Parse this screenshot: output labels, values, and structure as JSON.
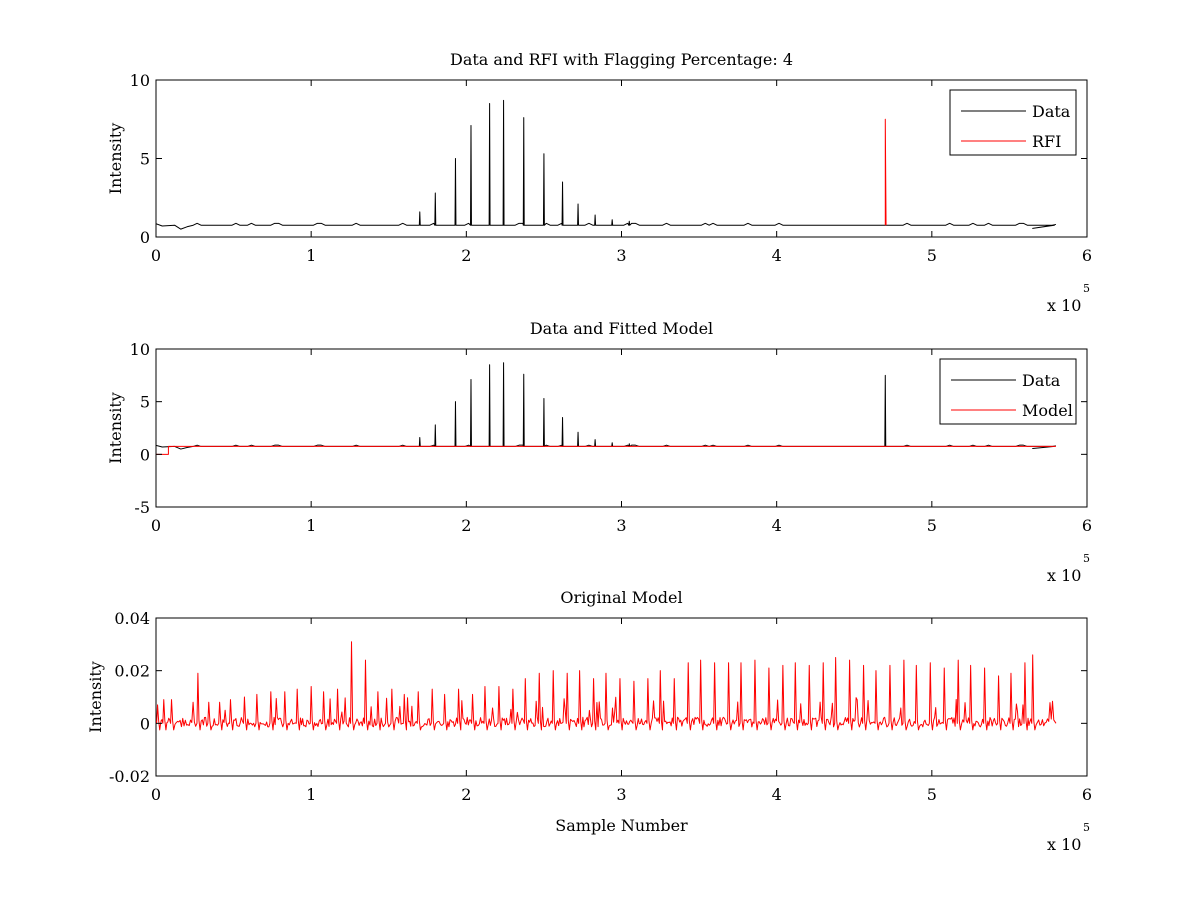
{
  "figure": {
    "background": "#ffffff"
  },
  "chart_data": [
    {
      "type": "line",
      "title": "Data and RFI with Flagging Percentage: 4",
      "xlabel": "",
      "ylabel": "Intensity",
      "xlim": [
        0,
        600000
      ],
      "ylim": [
        0,
        10
      ],
      "xticks": [
        0,
        100000,
        200000,
        300000,
        400000,
        500000,
        600000
      ],
      "xtick_labels": [
        "0",
        "1",
        "2",
        "3",
        "4",
        "5",
        "6"
      ],
      "x_exponent_label": "x 10",
      "x_exponent_power": "5",
      "yticks": [
        0,
        5,
        10
      ],
      "ytick_labels": [
        "0",
        "5",
        "10"
      ],
      "grid": false,
      "legend_position": "top-right",
      "baseline": 0.75,
      "series": [
        {
          "name": "Data",
          "color": "#000000",
          "spikes": [
            {
              "x": 170000,
              "y": 1.6
            },
            {
              "x": 180000,
              "y": 2.8
            },
            {
              "x": 193000,
              "y": 5.0
            },
            {
              "x": 203000,
              "y": 7.1
            },
            {
              "x": 215000,
              "y": 8.5
            },
            {
              "x": 224000,
              "y": 8.7
            },
            {
              "x": 237000,
              "y": 7.6
            },
            {
              "x": 250000,
              "y": 5.3
            },
            {
              "x": 262000,
              "y": 3.5
            },
            {
              "x": 272000,
              "y": 2.1
            },
            {
              "x": 283000,
              "y": 1.4
            },
            {
              "x": 294000,
              "y": 1.1
            },
            {
              "x": 305000,
              "y": 1.0
            }
          ]
        },
        {
          "name": "RFI",
          "color": "#ff0000",
          "spikes": [
            {
              "x": 470000,
              "y": 7.5
            }
          ]
        }
      ]
    },
    {
      "type": "line",
      "title": "Data and Fitted Model",
      "xlabel": "",
      "ylabel": "Intensity",
      "xlim": [
        0,
        600000
      ],
      "ylim": [
        -5,
        10
      ],
      "xticks": [
        0,
        100000,
        200000,
        300000,
        400000,
        500000,
        600000
      ],
      "xtick_labels": [
        "0",
        "1",
        "2",
        "3",
        "4",
        "5",
        "6"
      ],
      "x_exponent_label": "x 10",
      "x_exponent_power": "5",
      "yticks": [
        -5,
        0,
        5,
        10
      ],
      "ytick_labels": [
        "-5",
        "0",
        "5",
        "10"
      ],
      "grid": false,
      "legend_position": "top-right",
      "baseline": 0.75,
      "series": [
        {
          "name": "Data",
          "color": "#000000",
          "spikes": [
            {
              "x": 170000,
              "y": 1.6
            },
            {
              "x": 180000,
              "y": 2.8
            },
            {
              "x": 193000,
              "y": 5.0
            },
            {
              "x": 203000,
              "y": 7.1
            },
            {
              "x": 215000,
              "y": 8.5
            },
            {
              "x": 224000,
              "y": 8.7
            },
            {
              "x": 237000,
              "y": 7.6
            },
            {
              "x": 250000,
              "y": 5.3
            },
            {
              "x": 262000,
              "y": 3.5
            },
            {
              "x": 272000,
              "y": 2.1
            },
            {
              "x": 283000,
              "y": 1.4
            },
            {
              "x": 294000,
              "y": 1.1
            },
            {
              "x": 305000,
              "y": 1.0
            },
            {
              "x": 470000,
              "y": 7.5
            }
          ]
        },
        {
          "name": "Model",
          "color": "#ff0000",
          "value": 0.75,
          "dip": {
            "x_start": 0,
            "x_end": 8000,
            "y": 0.0
          }
        }
      ]
    },
    {
      "type": "line",
      "title": "Original Model",
      "xlabel": "Sample Number",
      "ylabel": "Intensity",
      "xlim": [
        0,
        600000
      ],
      "ylim": [
        -0.02,
        0.04
      ],
      "xticks": [
        0,
        100000,
        200000,
        300000,
        400000,
        500000,
        600000
      ],
      "xtick_labels": [
        "0",
        "1",
        "2",
        "3",
        "4",
        "5",
        "6"
      ],
      "x_exponent_label": "x 10",
      "x_exponent_power": "5",
      "yticks": [
        -0.02,
        0,
        0.02,
        0.04
      ],
      "ytick_labels": [
        "-0.02",
        "0",
        "0.02",
        "0.04"
      ],
      "grid": false,
      "series": [
        {
          "color": "#ff0000",
          "x_end": 580000,
          "peaks": [
            {
              "x": 1000,
              "y": 0.007
            },
            {
              "x": 5000,
              "y": 0.009
            },
            {
              "x": 10000,
              "y": 0.009
            },
            {
              "x": 27000,
              "y": 0.019
            },
            {
              "x": 34000,
              "y": 0.008
            },
            {
              "x": 41000,
              "y": 0.008
            },
            {
              "x": 48000,
              "y": 0.009
            },
            {
              "x": 57000,
              "y": 0.01
            },
            {
              "x": 65000,
              "y": 0.011
            },
            {
              "x": 74000,
              "y": 0.012
            },
            {
              "x": 83000,
              "y": 0.012
            },
            {
              "x": 91000,
              "y": 0.013
            },
            {
              "x": 100000,
              "y": 0.014
            },
            {
              "x": 108000,
              "y": 0.012
            },
            {
              "x": 117000,
              "y": 0.013
            },
            {
              "x": 126000,
              "y": 0.031
            },
            {
              "x": 135000,
              "y": 0.024
            },
            {
              "x": 143000,
              "y": 0.012
            },
            {
              "x": 152000,
              "y": 0.013
            },
            {
              "x": 160000,
              "y": 0.011
            },
            {
              "x": 169000,
              "y": 0.012
            },
            {
              "x": 178000,
              "y": 0.013
            },
            {
              "x": 186000,
              "y": 0.011
            },
            {
              "x": 195000,
              "y": 0.013
            },
            {
              "x": 204000,
              "y": 0.011
            },
            {
              "x": 212000,
              "y": 0.014
            },
            {
              "x": 221000,
              "y": 0.014
            },
            {
              "x": 230000,
              "y": 0.013
            },
            {
              "x": 238000,
              "y": 0.017
            },
            {
              "x": 247000,
              "y": 0.019
            },
            {
              "x": 256000,
              "y": 0.02
            },
            {
              "x": 265000,
              "y": 0.019
            },
            {
              "x": 273000,
              "y": 0.02
            },
            {
              "x": 282000,
              "y": 0.017
            },
            {
              "x": 290000,
              "y": 0.019
            },
            {
              "x": 299000,
              "y": 0.017
            },
            {
              "x": 308000,
              "y": 0.016
            },
            {
              "x": 317000,
              "y": 0.017
            },
            {
              "x": 325000,
              "y": 0.02
            },
            {
              "x": 334000,
              "y": 0.017
            },
            {
              "x": 343000,
              "y": 0.023
            },
            {
              "x": 351000,
              "y": 0.024
            },
            {
              "x": 360000,
              "y": 0.023
            },
            {
              "x": 369000,
              "y": 0.023
            },
            {
              "x": 377000,
              "y": 0.023
            },
            {
              "x": 386000,
              "y": 0.024
            },
            {
              "x": 395000,
              "y": 0.021
            },
            {
              "x": 404000,
              "y": 0.022
            },
            {
              "x": 412000,
              "y": 0.023
            },
            {
              "x": 421000,
              "y": 0.022
            },
            {
              "x": 430000,
              "y": 0.023
            },
            {
              "x": 438000,
              "y": 0.025
            },
            {
              "x": 447000,
              "y": 0.024
            },
            {
              "x": 456000,
              "y": 0.022
            },
            {
              "x": 464000,
              "y": 0.02
            },
            {
              "x": 473000,
              "y": 0.022
            },
            {
              "x": 482000,
              "y": 0.024
            },
            {
              "x": 490000,
              "y": 0.022
            },
            {
              "x": 499000,
              "y": 0.023
            },
            {
              "x": 508000,
              "y": 0.021
            },
            {
              "x": 517000,
              "y": 0.024
            },
            {
              "x": 525000,
              "y": 0.022
            },
            {
              "x": 534000,
              "y": 0.021
            },
            {
              "x": 543000,
              "y": 0.018
            },
            {
              "x": 551000,
              "y": 0.019
            },
            {
              "x": 560000,
              "y": 0.023
            },
            {
              "x": 565000,
              "y": 0.026
            }
          ]
        }
      ]
    }
  ]
}
